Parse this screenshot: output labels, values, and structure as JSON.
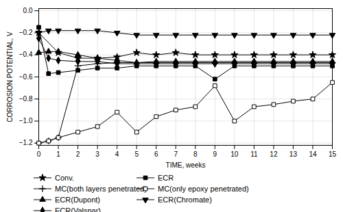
{
  "chart_data": {
    "type": "line",
    "x_label": "TIME, weeks",
    "y_label": "CORROSION POTENTIAL, V",
    "xlim": [
      0,
      15
    ],
    "ylim": [
      -1.22,
      0.02
    ],
    "xticks": [
      0,
      1,
      2,
      3,
      4,
      5,
      6,
      7,
      8,
      9,
      10,
      11,
      12,
      13,
      14,
      15
    ],
    "yticks": [
      {
        "value": 0.0,
        "label": "0.0"
      },
      {
        "value": -0.2,
        "label": "−0.2"
      },
      {
        "value": -0.4,
        "label": "−0.4"
      },
      {
        "value": -0.6,
        "label": "−0.6"
      },
      {
        "value": -0.8,
        "label": "−0.8"
      },
      {
        "value": -1.0,
        "label": "−1.0"
      },
      {
        "value": -1.2,
        "label": "−1.2"
      }
    ],
    "grid": true,
    "legend": "bottom",
    "series": [
      {
        "name": "Conv.",
        "color": "black",
        "marker": "star",
        "x": [
          0,
          1,
          2,
          3,
          4,
          5,
          6,
          7,
          8,
          9,
          10,
          11,
          12,
          13,
          14,
          15
        ],
        "values": [
          -0.2,
          -0.38,
          -0.43,
          -0.43,
          -0.42,
          -0.38,
          -0.4,
          -0.38,
          -0.4,
          -0.4,
          -0.4,
          -0.4,
          -0.4,
          -0.4,
          -0.4,
          -0.4
        ]
      },
      {
        "name": "ECR",
        "color": "black",
        "marker": "square",
        "x": [
          0,
          0.5,
          1,
          2,
          3,
          4,
          5,
          6,
          7,
          8,
          9,
          10,
          11,
          12,
          13,
          14,
          15
        ],
        "values": [
          -0.15,
          -0.57,
          -0.56,
          -0.54,
          -0.52,
          -0.52,
          -0.5,
          -0.5,
          -0.5,
          -0.5,
          -0.62,
          -0.5,
          -0.5,
          -0.5,
          -0.5,
          -0.5,
          -0.5
        ]
      },
      {
        "name": "MC(both layers penetrated)",
        "color": "black",
        "marker": "plus",
        "x": [
          0,
          0.5,
          1,
          2,
          3,
          4,
          5,
          6,
          7,
          8,
          9,
          10,
          11,
          12,
          13,
          14,
          15
        ],
        "values": [
          -1.2,
          -1.18,
          -1.15,
          -0.5,
          -0.48,
          -0.47,
          -0.47,
          -0.47,
          -0.47,
          -0.47,
          -0.47,
          -0.47,
          -0.47,
          -0.47,
          -0.47,
          -0.47,
          -0.47
        ]
      },
      {
        "name": "MC(only epoxy penetrated)",
        "color": "black",
        "marker": "open-square",
        "x": [
          0,
          0.5,
          1,
          2,
          3,
          4,
          5,
          6,
          7,
          8,
          9,
          10,
          11,
          12,
          13,
          14,
          15
        ],
        "values": [
          -1.2,
          -1.18,
          -1.15,
          -1.1,
          -1.05,
          -0.92,
          -1.1,
          -0.96,
          -0.9,
          -0.87,
          -0.68,
          -1.0,
          -0.87,
          -0.85,
          -0.82,
          -0.8,
          -0.65
        ]
      },
      {
        "name": "ECR(Dupont)",
        "color": "black",
        "marker": "triangle-up",
        "x": [
          0,
          0.5,
          1,
          2,
          3,
          4,
          5,
          6,
          7,
          8,
          9,
          10,
          11,
          12,
          13,
          14,
          15
        ],
        "values": [
          -0.38,
          -0.37,
          -0.37,
          -0.4,
          -0.43,
          -0.45,
          -0.47,
          -0.46,
          -0.46,
          -0.46,
          -0.46,
          -0.46,
          -0.46,
          -0.46,
          -0.46,
          -0.46,
          -0.46
        ]
      },
      {
        "name": "ECR(Chromate)",
        "color": "black",
        "marker": "triangle-down",
        "x": [
          0,
          0.5,
          1,
          2,
          3,
          4,
          5,
          6,
          7,
          8,
          9,
          10,
          11,
          12,
          13,
          14,
          15
        ],
        "values": [
          -0.2,
          -0.18,
          -0.18,
          -0.18,
          -0.18,
          -0.2,
          -0.22,
          -0.22,
          -0.22,
          -0.22,
          -0.22,
          -0.22,
          -0.22,
          -0.22,
          -0.22,
          -0.22,
          -0.22
        ]
      },
      {
        "name": "ECR(Valspar)",
        "color": "black",
        "marker": "diamond",
        "x": [
          0,
          0.5,
          1,
          2,
          3,
          4,
          5,
          6,
          7,
          8,
          9,
          10,
          11,
          12,
          13,
          14,
          15
        ],
        "values": [
          -0.25,
          -0.43,
          -0.45,
          -0.46,
          -0.46,
          -0.48,
          -0.48,
          -0.48,
          -0.48,
          -0.48,
          -0.48,
          -0.48,
          -0.48,
          -0.48,
          -0.48,
          -0.48,
          -0.48
        ]
      }
    ]
  }
}
